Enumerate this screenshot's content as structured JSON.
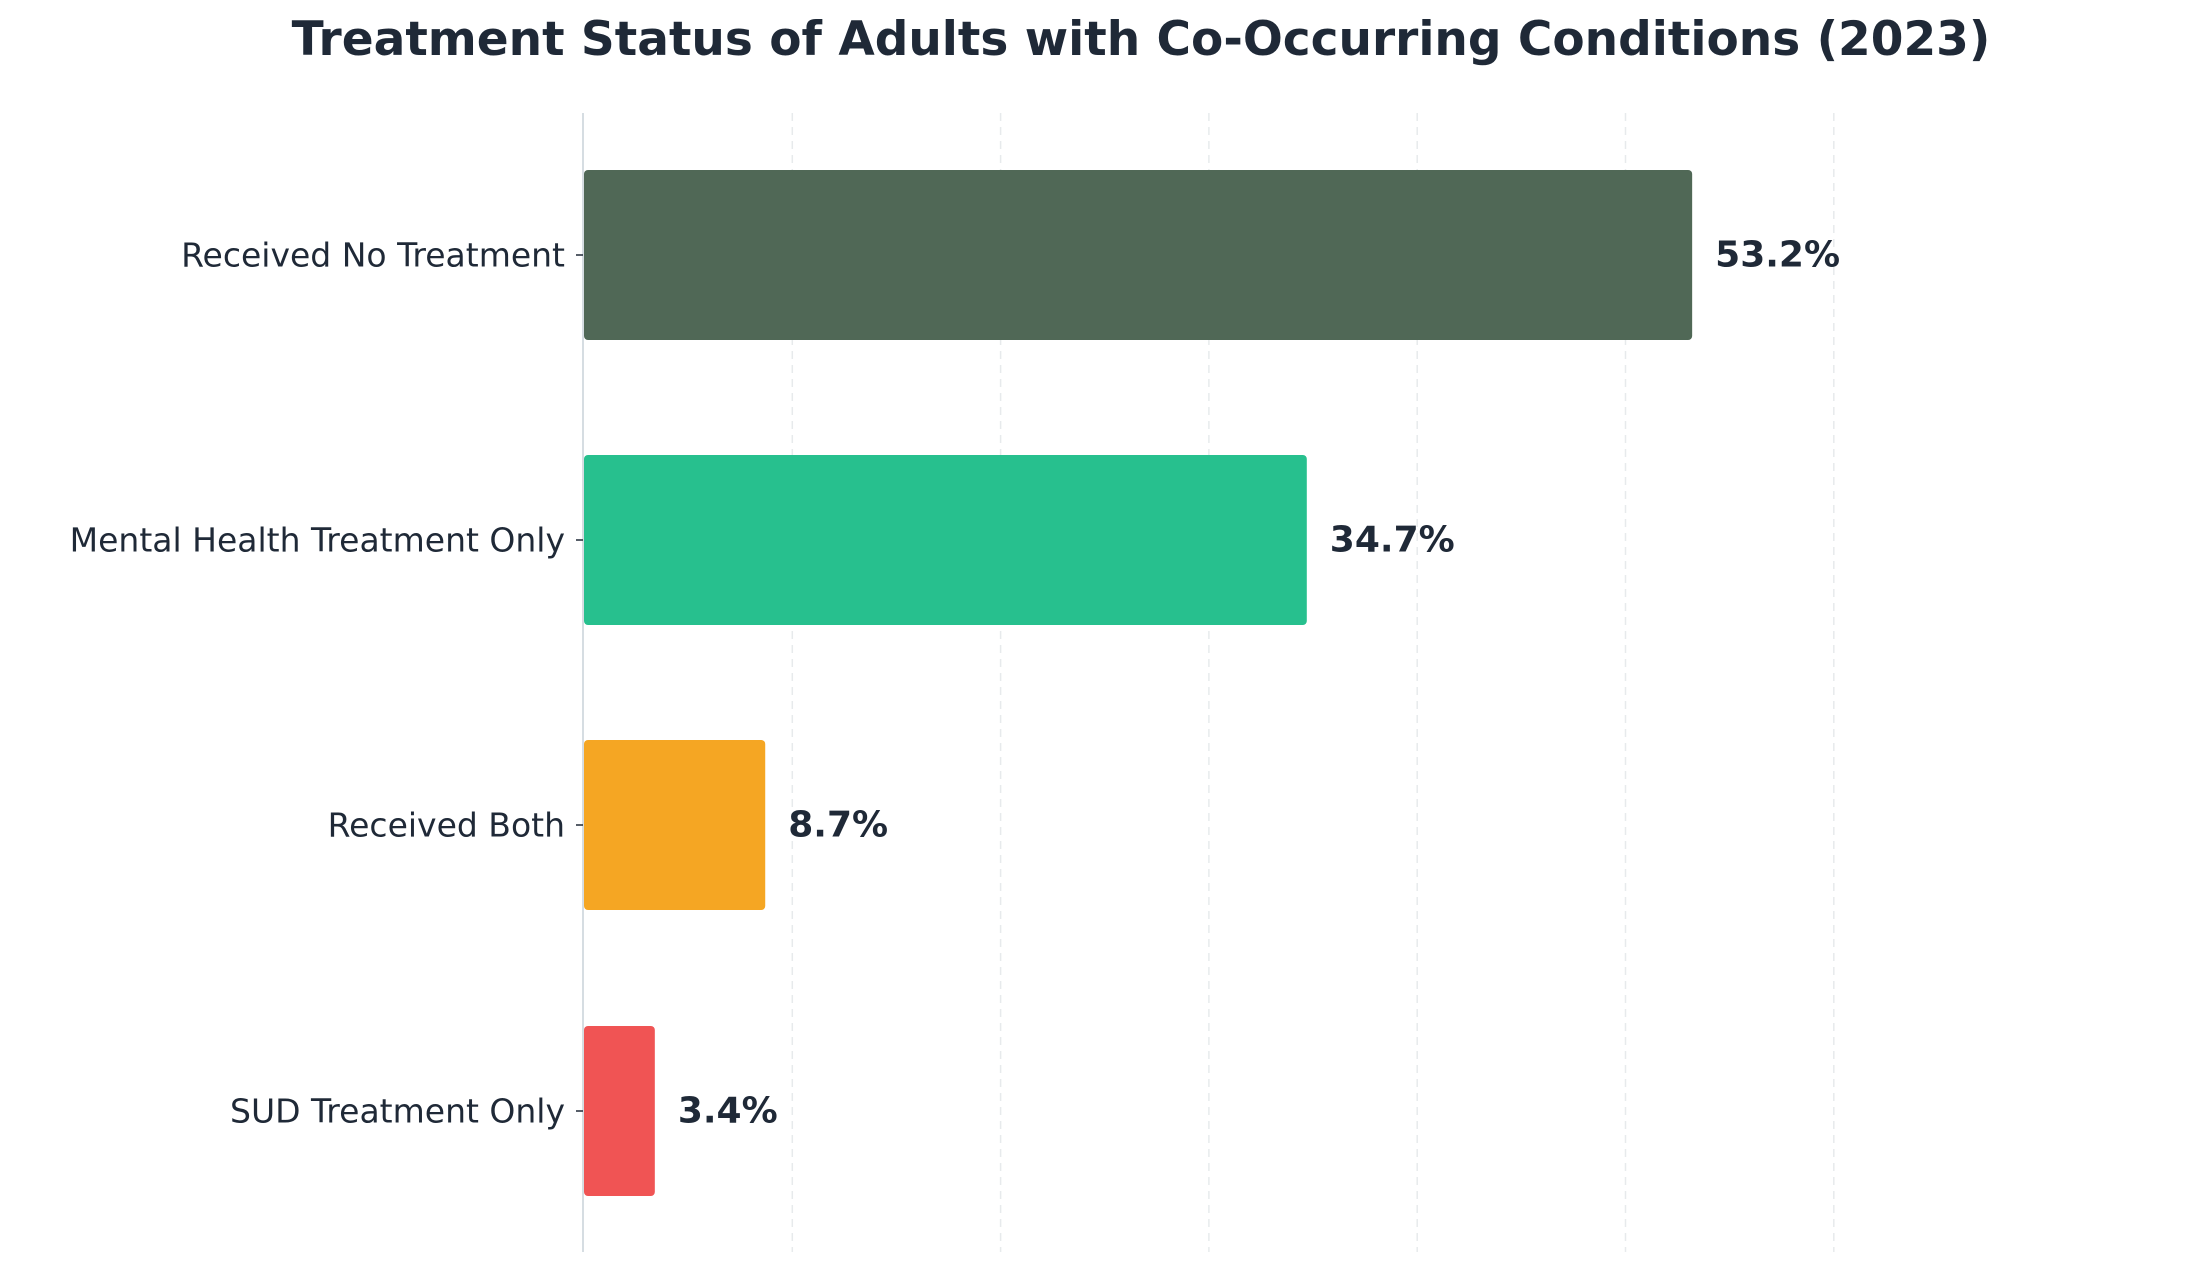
{
  "chart_data": {
    "type": "bar",
    "orientation": "horizontal",
    "title": "Treatment Status of Adults with Co-Occurring Conditions (2023)",
    "xlabel": "",
    "ylabel": "",
    "categories": [
      "Received No Treatment",
      "Mental Health Treatment Only",
      "Received Both",
      "SUD Treatment Only"
    ],
    "values": [
      53.2,
      34.7,
      8.7,
      3.4
    ],
    "value_labels": [
      "53.2%",
      "34.7%",
      "8.7%",
      "3.4%"
    ],
    "colors": [
      "#506856",
      "#27c08e",
      "#f5a623",
      "#f05454"
    ],
    "xlim": [
      0,
      60
    ],
    "grid": "vertical dashed",
    "x_tick_labels_visible": false,
    "legend": "none"
  }
}
